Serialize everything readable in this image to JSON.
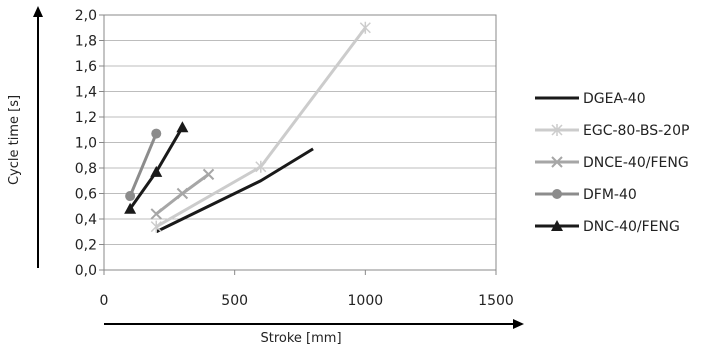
{
  "chart_data": {
    "type": "line",
    "title": "",
    "xlabel": "Stroke [mm]",
    "ylabel": "Cycle time [s]",
    "xlim": [
      0,
      1500
    ],
    "ylim": [
      0,
      2.0
    ],
    "x_ticks": [
      0,
      500,
      1000,
      1500
    ],
    "x_tick_labels": [
      "0",
      "500",
      "1000",
      "1500"
    ],
    "y_ticks": [
      0,
      0.2,
      0.4,
      0.6,
      0.8,
      1.0,
      1.2,
      1.4,
      1.6,
      1.8,
      2.0
    ],
    "y_tick_labels": [
      "0,0",
      "0,2",
      "0,4",
      "0,6",
      "0,8",
      "1,0",
      "1,2",
      "1,4",
      "1,6",
      "1,8",
      "2,0"
    ],
    "grid": "horizontal",
    "legend_position": "right",
    "series": [
      {
        "name": "DGEA-40",
        "color": "#1a1a1a",
        "marker": "none",
        "x": [
          200,
          600,
          800
        ],
        "y": [
          0.3,
          0.7,
          0.95
        ]
      },
      {
        "name": "EGC-80-BS-20P",
        "color": "#cccccc",
        "marker": "asterisk",
        "x": [
          200,
          600,
          1000
        ],
        "y": [
          0.34,
          0.81,
          1.9
        ]
      },
      {
        "name": "DNCE-40/FENG",
        "color": "#a6a6a6",
        "marker": "x",
        "x": [
          200,
          300,
          400
        ],
        "y": [
          0.44,
          0.6,
          0.75
        ]
      },
      {
        "name": "DFM-40",
        "color": "#8c8c8c",
        "marker": "circle",
        "x": [
          100,
          200
        ],
        "y": [
          0.58,
          1.07
        ]
      },
      {
        "name": "DNC-40/FENG",
        "color": "#1a1a1a",
        "marker": "triangle",
        "x": [
          100,
          200,
          300
        ],
        "y": [
          0.48,
          0.77,
          1.12
        ]
      }
    ]
  }
}
